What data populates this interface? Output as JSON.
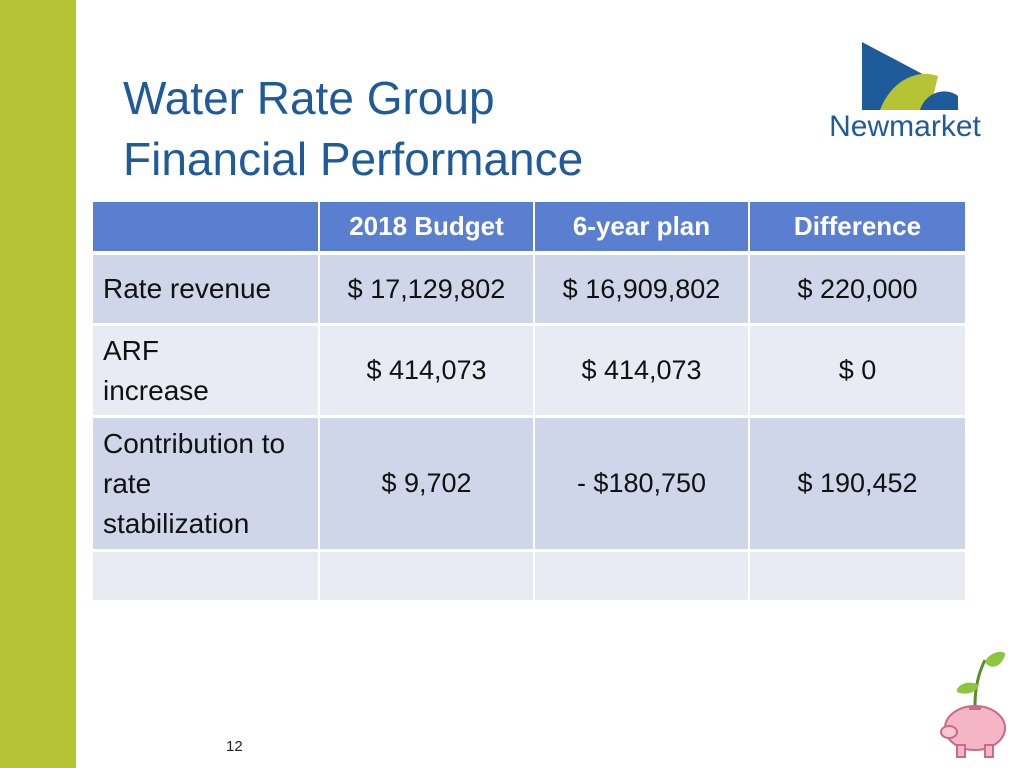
{
  "header": {
    "title_lines": [
      "Water Rate Group",
      "Financial Performance"
    ],
    "logo_text": "Newmarket"
  },
  "table": {
    "columns": [
      "2018 Budget",
      "6-year plan",
      "Difference"
    ],
    "rows": [
      {
        "label": "Rate revenue",
        "cells": [
          "$ 17,129,802",
          "$ 16,909,802",
          "$ 220,000"
        ]
      },
      {
        "label": "ARF increase",
        "cells": [
          "$ 414,073",
          "$ 414,073",
          "$ 0"
        ]
      },
      {
        "label": "Contribution to rate stabilization",
        "cells": [
          "$ 9,702",
          "- $180,750",
          "$ 190,452"
        ]
      }
    ]
  },
  "footer": {
    "page_number": "12"
  }
}
